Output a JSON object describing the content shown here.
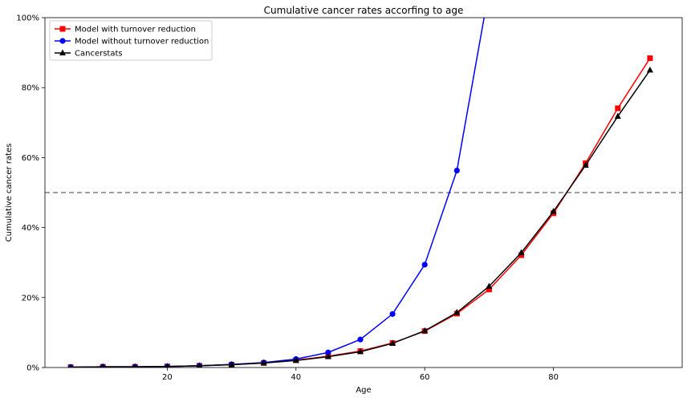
{
  "chart_data": {
    "type": "line",
    "title": "Cumulative cancer rates accorfing to age",
    "xlabel": "Age",
    "ylabel": "Cumulative cancer rates",
    "xlim": [
      1,
      100
    ],
    "ylim": [
      0,
      1
    ],
    "x_ticks": [
      20,
      40,
      60,
      80
    ],
    "y_ticks": [
      0,
      0.2,
      0.4,
      0.6,
      0.8,
      1.0
    ],
    "y_tick_labels": [
      "0%",
      "20%",
      "40%",
      "60%",
      "80%",
      "100%"
    ],
    "grid": false,
    "legend_position": "top-left",
    "reference_line": {
      "y": 0.5,
      "style": "dashed",
      "color": "#808080"
    },
    "series": [
      {
        "name": "Model with turnover reduction",
        "color": "#ff0000",
        "marker": "square",
        "x": [
          5,
          10,
          15,
          20,
          25,
          30,
          35,
          40,
          45,
          50,
          55,
          60,
          65,
          70,
          75,
          80,
          85,
          90,
          95
        ],
        "values": [
          0.001,
          0.002,
          0.002,
          0.003,
          0.005,
          0.008,
          0.013,
          0.021,
          0.032,
          0.047,
          0.07,
          0.104,
          0.154,
          0.223,
          0.321,
          0.441,
          0.584,
          0.741,
          0.884
        ]
      },
      {
        "name": "Model without turnover reduction",
        "color": "#0000ff",
        "marker": "circle",
        "x": [
          5,
          10,
          15,
          20,
          25,
          30,
          35,
          40,
          45,
          50,
          55,
          60,
          65,
          70
        ],
        "values": [
          0.001,
          0.002,
          0.002,
          0.003,
          0.005,
          0.009,
          0.014,
          0.024,
          0.043,
          0.08,
          0.153,
          0.294,
          0.563,
          1.08
        ]
      },
      {
        "name": "Cancerstats",
        "color": "#000000",
        "marker": "triangle",
        "x": [
          5,
          10,
          15,
          20,
          25,
          30,
          35,
          40,
          45,
          50,
          55,
          60,
          65,
          70,
          75,
          80,
          85,
          90,
          95
        ],
        "values": [
          0.001,
          0.002,
          0.002,
          0.003,
          0.005,
          0.008,
          0.013,
          0.02,
          0.031,
          0.045,
          0.069,
          0.105,
          0.157,
          0.232,
          0.328,
          0.446,
          0.578,
          0.718,
          0.85
        ]
      }
    ]
  }
}
